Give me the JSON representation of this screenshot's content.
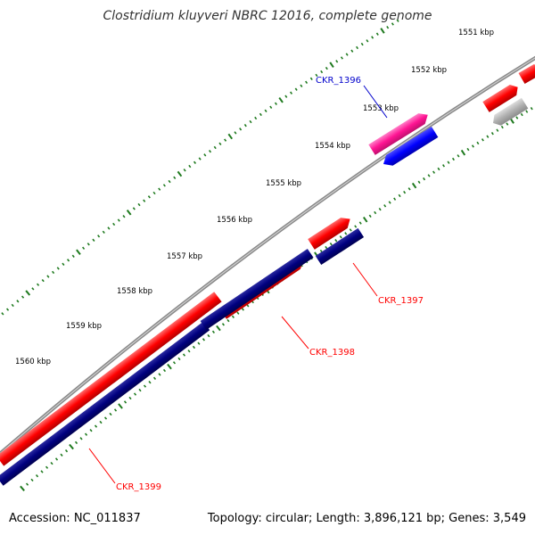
{
  "title": "Clostridium kluyveri NBRC 12016, complete genome",
  "footer": {
    "accession": "Accession: NC_011837",
    "summary": "Topology: circular; Length: 3,896,121 bp; Genes: 3,549"
  },
  "scale": {
    "ticks": [
      "1551 kbp",
      "1552 kbp",
      "1553 kbp",
      "1554 kbp",
      "1555 kbp",
      "1556 kbp",
      "1557 kbp",
      "1558 kbp",
      "1559 kbp",
      "1560 kbp"
    ]
  },
  "genes": {
    "ckr_1396": "CKR_1396",
    "ckr_1397": "CKR_1397",
    "ckr_1398": "CKR_1398",
    "ckr_1399": "CKR_1399"
  },
  "colors": {
    "tick_green": "#1f7a1f",
    "backbone": "#808080",
    "gene_red": "#ff0000",
    "gene_navy": "#000080",
    "gene_blue": "#0000ff",
    "gene_magenta": "#ff1493",
    "gene_gray": "#b0b0b0",
    "label_red": "#ff0000",
    "label_blue": "#0000cc"
  }
}
